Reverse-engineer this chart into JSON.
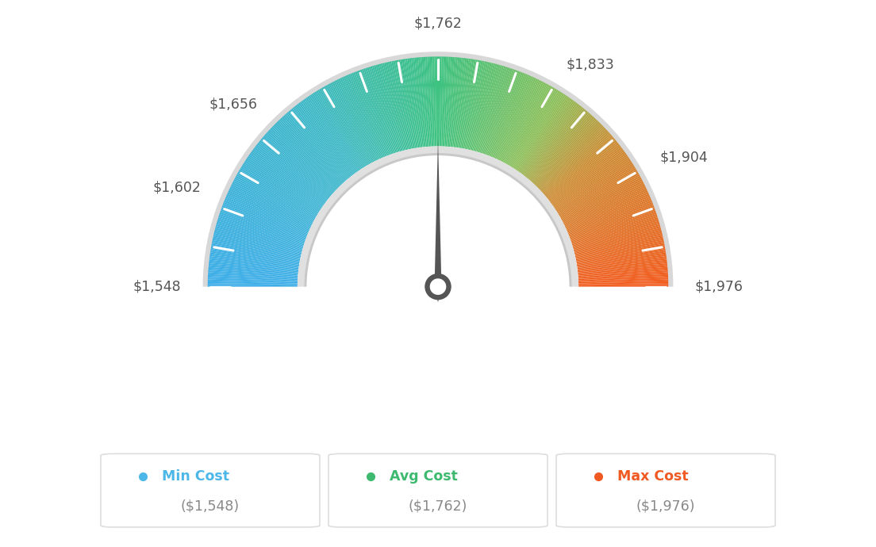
{
  "min_val": 1548,
  "max_val": 1976,
  "avg_val": 1762,
  "labels": [
    "$1,548",
    "$1,602",
    "$1,656",
    "$1,762",
    "$1,833",
    "$1,904",
    "$1,976"
  ],
  "label_values": [
    1548,
    1602,
    1656,
    1762,
    1833,
    1904,
    1976
  ],
  "legend": [
    {
      "label": "Min Cost",
      "value": "($1,548)",
      "color": "#4db8e8"
    },
    {
      "label": "Avg Cost",
      "value": "($1,762)",
      "color": "#3dba6f"
    },
    {
      "label": "Max Cost",
      "value": "($1,976)",
      "color": "#f05a22"
    }
  ],
  "bg_color": "#ffffff",
  "needle_color": "#555555",
  "tick_color": "#ffffff",
  "color_stops": [
    [
      0.0,
      [
        0.24,
        0.68,
        0.91
      ]
    ],
    [
      0.3,
      [
        0.24,
        0.72,
        0.78
      ]
    ],
    [
      0.5,
      [
        0.24,
        0.76,
        0.5
      ]
    ],
    [
      0.68,
      [
        0.55,
        0.75,
        0.35
      ]
    ],
    [
      0.78,
      [
        0.8,
        0.55,
        0.2
      ]
    ],
    [
      1.0,
      [
        0.95,
        0.36,
        0.12
      ]
    ]
  ]
}
